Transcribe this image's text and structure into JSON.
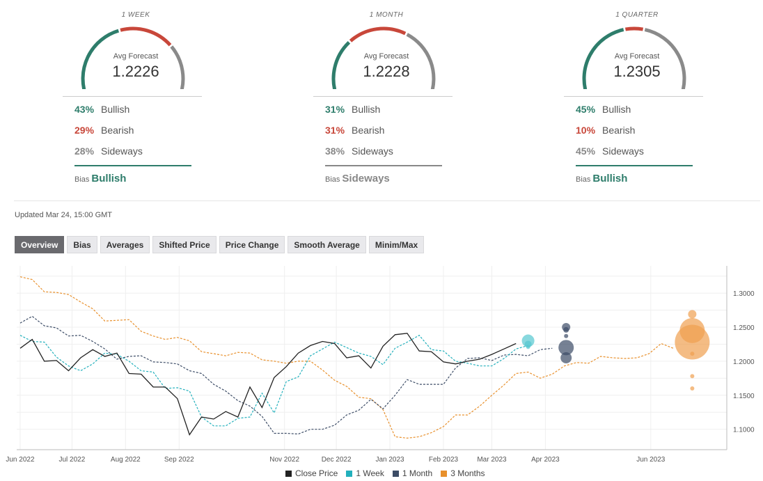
{
  "gauges": [
    {
      "period": "1 WEEK",
      "label": "Avg Forecast",
      "value": "1.2226",
      "bullish_pct": "43%",
      "bullish_label": "Bullish",
      "bearish_pct": "29%",
      "bearish_label": "Bearish",
      "sideways_pct": "28%",
      "sideways_label": "Sideways",
      "bias_word": "Bias",
      "bias": "Bullish",
      "bias_color": "#2e7d6b",
      "split": {
        "bullish": 43,
        "bearish": 29,
        "sideways": 28
      }
    },
    {
      "period": "1 MONTH",
      "label": "Avg Forecast",
      "value": "1.2228",
      "bullish_pct": "31%",
      "bullish_label": "Bullish",
      "bearish_pct": "31%",
      "bearish_label": "Bearish",
      "sideways_pct": "38%",
      "sideways_label": "Sideways",
      "bias_word": "Bias",
      "bias": "Sideways",
      "bias_color": "#888888",
      "split": {
        "bullish": 31,
        "bearish": 31,
        "sideways": 38
      }
    },
    {
      "period": "1 QUARTER",
      "label": "Avg Forecast",
      "value": "1.2305",
      "bullish_pct": "45%",
      "bullish_label": "Bullish",
      "bearish_pct": "10%",
      "bearish_label": "Bearish",
      "sideways_pct": "45%",
      "sideways_label": "Sideways",
      "bias_word": "Bias",
      "bias": "Bullish",
      "bias_color": "#2e7d6b",
      "split": {
        "bullish": 45,
        "bearish": 10,
        "sideways": 45
      }
    }
  ],
  "colors": {
    "bullish": "#2e7d6b",
    "bearish": "#c8473a",
    "sideways": "#8a8a8a"
  },
  "updated": "Updated Mar 24, 15:00 GMT",
  "tabs": [
    {
      "label": "Overview",
      "active": true
    },
    {
      "label": "Bias",
      "active": false
    },
    {
      "label": "Averages",
      "active": false
    },
    {
      "label": "Shifted Price",
      "active": false
    },
    {
      "label": "Price Change",
      "active": false
    },
    {
      "label": "Smooth Average",
      "active": false
    },
    {
      "label": "Minim/Max",
      "active": false
    }
  ],
  "chart_data": {
    "type": "line",
    "x_ticks": [
      "Jun 2022",
      "Jul 2022",
      "Aug 2022",
      "Sep 2022",
      "Nov 2022",
      "Dec 2022",
      "Jan 2023",
      "Feb 2023",
      "Mar 2023",
      "Apr 2023",
      "Jun 2023"
    ],
    "y_ticks": [
      "1.1000",
      "1.1500",
      "1.2000",
      "1.2500",
      "1.3000"
    ],
    "ylim": [
      1.07,
      1.34
    ],
    "x_dates": [
      "2022-05-30",
      "2023-07-15"
    ],
    "series": [
      {
        "name": "Close Price",
        "color": "#222222",
        "dash": false,
        "points": [
          [
            "2022-06-01",
            1.219
          ],
          [
            "2022-06-08",
            1.232
          ],
          [
            "2022-06-15",
            1.2
          ],
          [
            "2022-06-22",
            1.201
          ],
          [
            "2022-06-29",
            1.186
          ],
          [
            "2022-07-06",
            1.205
          ],
          [
            "2022-07-13",
            1.217
          ],
          [
            "2022-07-20",
            1.207
          ],
          [
            "2022-07-27",
            1.212
          ],
          [
            "2022-08-03",
            1.182
          ],
          [
            "2022-08-10",
            1.181
          ],
          [
            "2022-08-17",
            1.162
          ],
          [
            "2022-08-24",
            1.162
          ],
          [
            "2022-08-31",
            1.145
          ],
          [
            "2022-09-07",
            1.092
          ],
          [
            "2022-09-14",
            1.118
          ],
          [
            "2022-09-21",
            1.115
          ],
          [
            "2022-09-28",
            1.126
          ],
          [
            "2022-10-05",
            1.118
          ],
          [
            "2022-10-12",
            1.162
          ],
          [
            "2022-10-19",
            1.132
          ],
          [
            "2022-10-26",
            1.176
          ],
          [
            "2022-11-02",
            1.192
          ],
          [
            "2022-11-09",
            1.212
          ],
          [
            "2022-11-16",
            1.223
          ],
          [
            "2022-11-23",
            1.229
          ],
          [
            "2022-11-30",
            1.226
          ],
          [
            "2022-12-07",
            1.205
          ],
          [
            "2022-12-14",
            1.208
          ],
          [
            "2022-12-21",
            1.19
          ],
          [
            "2022-12-28",
            1.222
          ],
          [
            "2023-01-04",
            1.239
          ],
          [
            "2023-01-11",
            1.241
          ],
          [
            "2023-01-18",
            1.215
          ],
          [
            "2023-01-25",
            1.214
          ],
          [
            "2023-02-01",
            1.199
          ],
          [
            "2023-02-08",
            1.196
          ],
          [
            "2023-02-15",
            1.2
          ],
          [
            "2023-02-22",
            1.203
          ],
          [
            "2023-03-01",
            1.21
          ],
          [
            "2023-03-08",
            1.218
          ],
          [
            "2023-03-15",
            1.226
          ]
        ]
      },
      {
        "name": "1 Week",
        "color": "#22b0bc",
        "dash": true,
        "points": [
          [
            "2022-06-01",
            1.238
          ],
          [
            "2022-06-08",
            1.229
          ],
          [
            "2022-06-15",
            1.228
          ],
          [
            "2022-06-22",
            1.206
          ],
          [
            "2022-06-29",
            1.193
          ],
          [
            "2022-07-06",
            1.186
          ],
          [
            "2022-07-13",
            1.196
          ],
          [
            "2022-07-20",
            1.212
          ],
          [
            "2022-07-27",
            1.21
          ],
          [
            "2022-08-03",
            1.2
          ],
          [
            "2022-08-10",
            1.186
          ],
          [
            "2022-08-17",
            1.184
          ],
          [
            "2022-08-24",
            1.16
          ],
          [
            "2022-08-31",
            1.161
          ],
          [
            "2022-09-07",
            1.156
          ],
          [
            "2022-09-14",
            1.118
          ],
          [
            "2022-09-21",
            1.105
          ],
          [
            "2022-09-28",
            1.105
          ],
          [
            "2022-10-05",
            1.116
          ],
          [
            "2022-10-12",
            1.118
          ],
          [
            "2022-10-19",
            1.153
          ],
          [
            "2022-10-26",
            1.124
          ],
          [
            "2022-11-02",
            1.17
          ],
          [
            "2022-11-09",
            1.177
          ],
          [
            "2022-11-16",
            1.208
          ],
          [
            "2022-11-23",
            1.218
          ],
          [
            "2022-11-30",
            1.228
          ],
          [
            "2022-12-07",
            1.22
          ],
          [
            "2022-12-14",
            1.212
          ],
          [
            "2022-12-21",
            1.207
          ],
          [
            "2022-12-28",
            1.195
          ],
          [
            "2023-01-04",
            1.219
          ],
          [
            "2023-01-11",
            1.228
          ],
          [
            "2023-01-18",
            1.238
          ],
          [
            "2023-01-25",
            1.217
          ],
          [
            "2023-02-01",
            1.215
          ],
          [
            "2023-02-08",
            1.2
          ],
          [
            "2023-02-15",
            1.197
          ],
          [
            "2023-02-22",
            1.193
          ],
          [
            "2023-03-01",
            1.193
          ],
          [
            "2023-03-08",
            1.204
          ],
          [
            "2023-03-15",
            1.218
          ],
          [
            "2023-03-22",
            1.223
          ]
        ]
      },
      {
        "name": "1 Month",
        "color": "#3c4c66",
        "dash": true,
        "points": [
          [
            "2022-06-01",
            1.256
          ],
          [
            "2022-06-08",
            1.266
          ],
          [
            "2022-06-15",
            1.252
          ],
          [
            "2022-06-22",
            1.249
          ],
          [
            "2022-06-29",
            1.237
          ],
          [
            "2022-07-06",
            1.238
          ],
          [
            "2022-07-13",
            1.229
          ],
          [
            "2022-07-20",
            1.218
          ],
          [
            "2022-07-27",
            1.203
          ],
          [
            "2022-08-03",
            1.207
          ],
          [
            "2022-08-10",
            1.208
          ],
          [
            "2022-08-17",
            1.199
          ],
          [
            "2022-08-24",
            1.198
          ],
          [
            "2022-08-31",
            1.196
          ],
          [
            "2022-09-07",
            1.186
          ],
          [
            "2022-09-14",
            1.182
          ],
          [
            "2022-09-21",
            1.166
          ],
          [
            "2022-09-28",
            1.156
          ],
          [
            "2022-10-05",
            1.142
          ],
          [
            "2022-10-12",
            1.134
          ],
          [
            "2022-10-19",
            1.119
          ],
          [
            "2022-10-26",
            1.094
          ],
          [
            "2022-11-02",
            1.094
          ],
          [
            "2022-11-09",
            1.093
          ],
          [
            "2022-11-16",
            1.1
          ],
          [
            "2022-11-23",
            1.1
          ],
          [
            "2022-11-30",
            1.106
          ],
          [
            "2022-12-07",
            1.121
          ],
          [
            "2022-12-14",
            1.128
          ],
          [
            "2022-12-21",
            1.144
          ],
          [
            "2022-12-28",
            1.13
          ],
          [
            "2023-01-04",
            1.15
          ],
          [
            "2023-01-11",
            1.173
          ],
          [
            "2023-01-18",
            1.166
          ],
          [
            "2023-01-25",
            1.166
          ],
          [
            "2023-02-01",
            1.166
          ],
          [
            "2023-02-08",
            1.19
          ],
          [
            "2023-02-15",
            1.204
          ],
          [
            "2023-02-22",
            1.205
          ],
          [
            "2023-03-01",
            1.201
          ],
          [
            "2023-03-08",
            1.209
          ],
          [
            "2023-03-15",
            1.21
          ],
          [
            "2023-03-22",
            1.208
          ],
          [
            "2023-03-29",
            1.217
          ],
          [
            "2023-04-05",
            1.219
          ]
        ]
      },
      {
        "name": "3 Months",
        "color": "#e8902c",
        "dash": true,
        "points": [
          [
            "2022-06-01",
            1.324
          ],
          [
            "2022-06-08",
            1.32
          ],
          [
            "2022-06-15",
            1.302
          ],
          [
            "2022-06-22",
            1.301
          ],
          [
            "2022-06-29",
            1.298
          ],
          [
            "2022-07-06",
            1.287
          ],
          [
            "2022-07-13",
            1.277
          ],
          [
            "2022-07-20",
            1.259
          ],
          [
            "2022-07-27",
            1.26
          ],
          [
            "2022-08-03",
            1.261
          ],
          [
            "2022-08-10",
            1.244
          ],
          [
            "2022-08-17",
            1.237
          ],
          [
            "2022-08-24",
            1.232
          ],
          [
            "2022-08-31",
            1.235
          ],
          [
            "2022-09-07",
            1.23
          ],
          [
            "2022-09-14",
            1.214
          ],
          [
            "2022-09-21",
            1.211
          ],
          [
            "2022-09-28",
            1.208
          ],
          [
            "2022-10-05",
            1.213
          ],
          [
            "2022-10-12",
            1.212
          ],
          [
            "2022-10-19",
            1.202
          ],
          [
            "2022-10-26",
            1.2
          ],
          [
            "2022-11-02",
            1.197
          ],
          [
            "2022-11-09",
            1.2
          ],
          [
            "2022-11-16",
            1.2
          ],
          [
            "2022-11-23",
            1.187
          ],
          [
            "2022-11-30",
            1.172
          ],
          [
            "2022-12-07",
            1.163
          ],
          [
            "2022-12-14",
            1.147
          ],
          [
            "2022-12-21",
            1.145
          ],
          [
            "2022-12-28",
            1.129
          ],
          [
            "2023-01-04",
            1.089
          ],
          [
            "2023-01-11",
            1.087
          ],
          [
            "2023-01-18",
            1.089
          ],
          [
            "2023-01-25",
            1.095
          ],
          [
            "2023-02-01",
            1.104
          ],
          [
            "2023-02-08",
            1.121
          ],
          [
            "2023-02-15",
            1.121
          ],
          [
            "2023-02-22",
            1.134
          ],
          [
            "2023-03-01",
            1.15
          ],
          [
            "2023-03-08",
            1.165
          ],
          [
            "2023-03-15",
            1.182
          ],
          [
            "2023-03-22",
            1.184
          ],
          [
            "2023-03-29",
            1.175
          ],
          [
            "2023-04-05",
            1.181
          ],
          [
            "2023-04-12",
            1.193
          ],
          [
            "2023-04-19",
            1.198
          ],
          [
            "2023-04-26",
            1.197
          ],
          [
            "2023-05-03",
            1.207
          ],
          [
            "2023-05-10",
            1.205
          ],
          [
            "2023-05-17",
            1.204
          ],
          [
            "2023-05-24",
            1.205
          ],
          [
            "2023-05-31",
            1.211
          ],
          [
            "2023-06-07",
            1.226
          ],
          [
            "2023-06-14",
            1.219
          ]
        ]
      }
    ],
    "forecast_bubbles": [
      {
        "series": "1 Week",
        "date": "2023-03-22",
        "color": "#56c8d0",
        "bubbles": [
          [
            1.23,
            9
          ],
          [
            1.225,
            5
          ],
          [
            1.221,
            3
          ]
        ]
      },
      {
        "series": "1 Month",
        "date": "2023-04-13",
        "color": "#3c4c66",
        "bubbles": [
          [
            1.25,
            6
          ],
          [
            1.246,
            4
          ],
          [
            1.22,
            11
          ],
          [
            1.205,
            8
          ],
          [
            1.237,
            3
          ]
        ]
      },
      {
        "series": "3 Months",
        "date": "2023-06-25",
        "color": "#f0a050",
        "bubbles": [
          [
            1.269,
            6
          ],
          [
            1.245,
            18
          ],
          [
            1.228,
            25
          ],
          [
            1.211,
            3
          ],
          [
            1.178,
            3
          ],
          [
            1.16,
            3
          ]
        ]
      }
    ],
    "legend": [
      "Close Price",
      "1 Week",
      "1 Month",
      "3 Months"
    ]
  }
}
